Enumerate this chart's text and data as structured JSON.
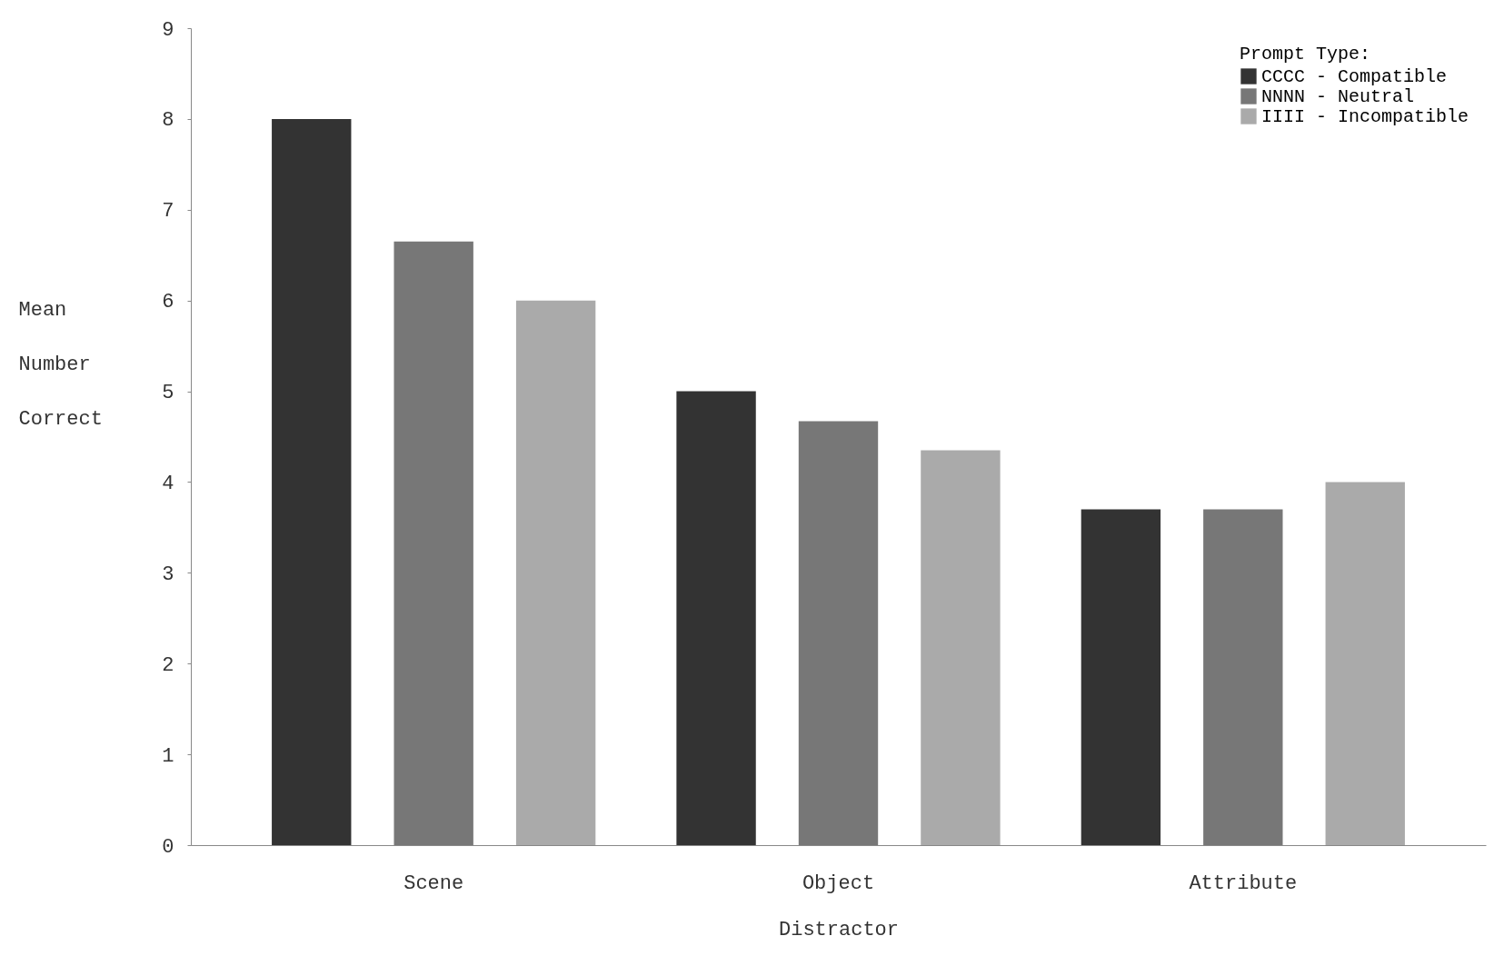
{
  "chart_data": {
    "type": "bar",
    "xlabel": "Distractor",
    "ylabel": "Mean Number Correct",
    "legend_title": "Prompt Type:",
    "categories": [
      "Scene",
      "Object",
      "Attribute"
    ],
    "series": [
      {
        "name": "CCCC - Compatible",
        "color": "#333333",
        "values": [
          8.0,
          5.0,
          3.7
        ]
      },
      {
        "name": "NNNN - Neutral",
        "color": "#777777",
        "values": [
          6.65,
          4.67,
          3.7
        ]
      },
      {
        "name": "IIII - Incompatible",
        "color": "#aaaaaa",
        "values": [
          6.0,
          4.35,
          4.0
        ]
      }
    ],
    "ylim": [
      0,
      9
    ],
    "yticks": [
      0,
      1,
      2,
      3,
      4,
      5,
      6,
      7,
      8,
      9
    ],
    "grid": false,
    "legend": "top right"
  }
}
